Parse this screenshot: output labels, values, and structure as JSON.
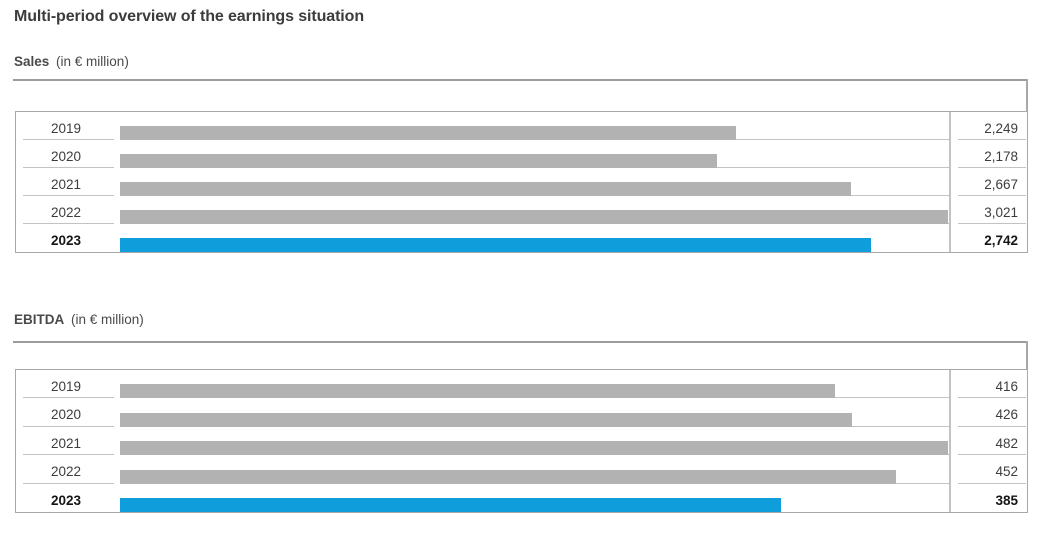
{
  "title": "Multi-period overview of the earnings situation",
  "colors": {
    "bar_gray": "#b2b2b2",
    "bar_blue": "#109ddb",
    "box_border": "#a8a8a8",
    "row_line": "#c3c3c3",
    "rule": "#9c9c9c",
    "text": "#3c3c3c"
  },
  "chart_data": [
    {
      "type": "bar",
      "title": "Sales",
      "unit": "(in € million)",
      "orientation": "horizontal",
      "categories": [
        "2019",
        "2020",
        "2021",
        "2022",
        "2023"
      ],
      "values": [
        2249,
        2178,
        2667,
        3021,
        2742
      ],
      "value_labels": [
        "2,249",
        "2,178",
        "2,667",
        "3,021",
        "2,742"
      ],
      "highlight_category": "2023",
      "xlim": [
        0,
        3021
      ],
      "grid": false,
      "legend": false
    },
    {
      "type": "bar",
      "title": "EBITDA",
      "unit": "(in € million)",
      "orientation": "horizontal",
      "categories": [
        "2019",
        "2020",
        "2021",
        "2022",
        "2023"
      ],
      "values": [
        416,
        426,
        482,
        452,
        385
      ],
      "value_labels": [
        "416",
        "426",
        "482",
        "452",
        "385"
      ],
      "highlight_category": "2023",
      "xlim": [
        0,
        482
      ],
      "grid": false,
      "legend": false
    }
  ]
}
